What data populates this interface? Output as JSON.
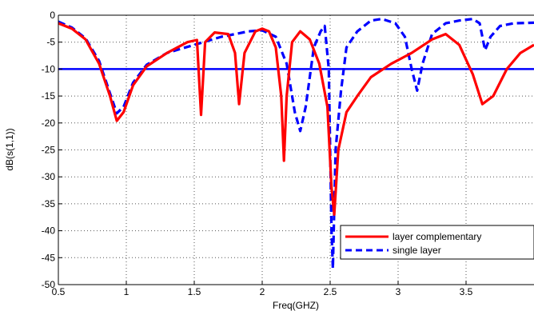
{
  "chart_data": {
    "type": "line",
    "title": "",
    "xlabel": "Freq(GHZ)",
    "ylabel": "dB(s(1,1))",
    "xlim": [
      0.5,
      4.0
    ],
    "ylim": [
      -50,
      0
    ],
    "xticks": [
      "0.5",
      "1",
      "1.5",
      "2",
      "2.5",
      "3",
      "3.5"
    ],
    "yticks": [
      "0",
      "-5",
      "-10",
      "-15",
      "-20",
      "-25",
      "-30",
      "-35",
      "-40",
      "-45",
      "-50"
    ],
    "grid": true,
    "legend_position": "bottom-right",
    "reference_line": {
      "y": -10,
      "color": "#0000ff"
    },
    "series": [
      {
        "name": "layer complementary",
        "color": "#ff0000",
        "style": "solid",
        "points": [
          [
            0.5,
            -1.5
          ],
          [
            0.6,
            -2.5
          ],
          [
            0.7,
            -4.5
          ],
          [
            0.8,
            -9.0
          ],
          [
            0.88,
            -15.0
          ],
          [
            0.93,
            -19.6
          ],
          [
            0.98,
            -18.0
          ],
          [
            1.05,
            -13.0
          ],
          [
            1.15,
            -9.5
          ],
          [
            1.3,
            -7.0
          ],
          [
            1.45,
            -5.0
          ],
          [
            1.52,
            -4.6
          ],
          [
            1.55,
            -18.5
          ],
          [
            1.58,
            -5.0
          ],
          [
            1.65,
            -3.2
          ],
          [
            1.75,
            -3.5
          ],
          [
            1.8,
            -7.0
          ],
          [
            1.83,
            -16.5
          ],
          [
            1.87,
            -7.0
          ],
          [
            1.95,
            -3.0
          ],
          [
            2.0,
            -2.5
          ],
          [
            2.05,
            -3.0
          ],
          [
            2.1,
            -6.0
          ],
          [
            2.14,
            -15.0
          ],
          [
            2.16,
            -27.0
          ],
          [
            2.18,
            -15.0
          ],
          [
            2.22,
            -5.0
          ],
          [
            2.28,
            -3.0
          ],
          [
            2.35,
            -4.5
          ],
          [
            2.42,
            -9.0
          ],
          [
            2.48,
            -17.0
          ],
          [
            2.51,
            -32.0
          ],
          [
            2.53,
            -37.0
          ],
          [
            2.56,
            -25.0
          ],
          [
            2.62,
            -18.0
          ],
          [
            2.7,
            -15.0
          ],
          [
            2.8,
            -11.5
          ],
          [
            2.95,
            -9.0
          ],
          [
            3.1,
            -7.0
          ],
          [
            3.25,
            -4.5
          ],
          [
            3.35,
            -3.5
          ],
          [
            3.45,
            -5.5
          ],
          [
            3.55,
            -11.0
          ],
          [
            3.62,
            -16.5
          ],
          [
            3.7,
            -15.0
          ],
          [
            3.8,
            -10.0
          ],
          [
            3.9,
            -7.0
          ],
          [
            4.0,
            -5.5
          ]
        ]
      },
      {
        "name": "single layer",
        "color": "#0000ff",
        "style": "dashed",
        "points": [
          [
            0.5,
            -1.2
          ],
          [
            0.6,
            -2.3
          ],
          [
            0.7,
            -4.3
          ],
          [
            0.8,
            -8.5
          ],
          [
            0.88,
            -14.5
          ],
          [
            0.93,
            -18.2
          ],
          [
            0.98,
            -17.0
          ],
          [
            1.05,
            -12.5
          ],
          [
            1.15,
            -9.2
          ],
          [
            1.3,
            -7.0
          ],
          [
            1.5,
            -5.5
          ],
          [
            1.7,
            -4.0
          ],
          [
            1.9,
            -3.0
          ],
          [
            2.0,
            -2.8
          ],
          [
            2.1,
            -4.0
          ],
          [
            2.18,
            -9.0
          ],
          [
            2.24,
            -18.0
          ],
          [
            2.28,
            -21.5
          ],
          [
            2.32,
            -17.0
          ],
          [
            2.38,
            -6.0
          ],
          [
            2.43,
            -3.0
          ],
          [
            2.46,
            -2.0
          ],
          [
            2.49,
            -10.0
          ],
          [
            2.51,
            -40.0
          ],
          [
            2.52,
            -47.0
          ],
          [
            2.54,
            -25.0
          ],
          [
            2.58,
            -14.0
          ],
          [
            2.62,
            -6.0
          ],
          [
            2.7,
            -3.0
          ],
          [
            2.8,
            -1.0
          ],
          [
            2.88,
            -0.7
          ],
          [
            2.98,
            -1.5
          ],
          [
            3.05,
            -4.0
          ],
          [
            3.1,
            -10.0
          ],
          [
            3.14,
            -14.0
          ],
          [
            3.18,
            -9.0
          ],
          [
            3.25,
            -3.5
          ],
          [
            3.35,
            -1.5
          ],
          [
            3.45,
            -1.0
          ],
          [
            3.55,
            -0.7
          ],
          [
            3.6,
            -1.5
          ],
          [
            3.64,
            -6.5
          ],
          [
            3.68,
            -4.0
          ],
          [
            3.75,
            -2.0
          ],
          [
            3.85,
            -1.5
          ],
          [
            4.0,
            -1.4
          ]
        ]
      }
    ]
  }
}
